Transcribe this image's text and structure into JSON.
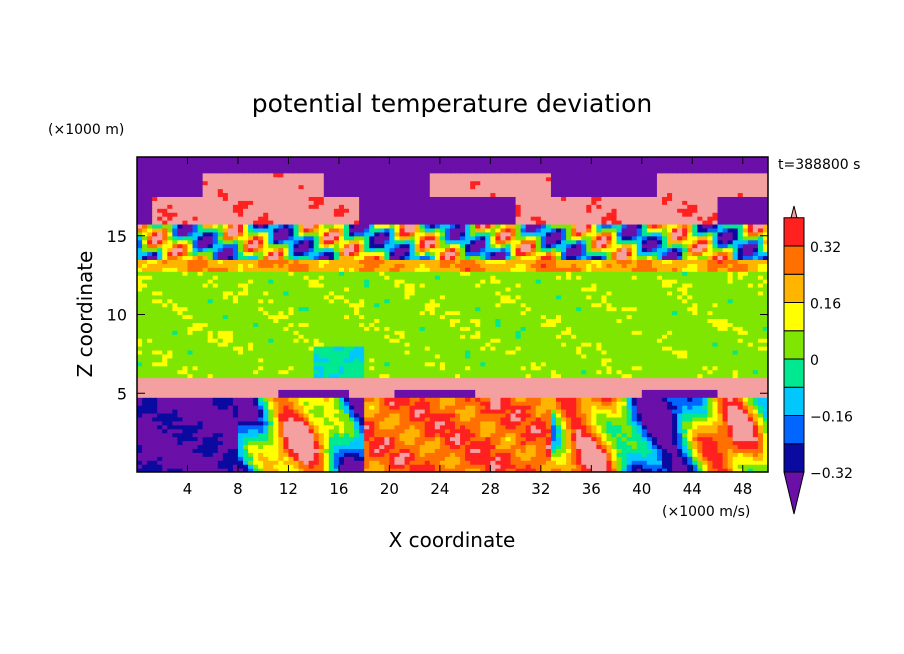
{
  "chart_data": {
    "type": "heatmap",
    "title": "potential temperature deviation",
    "time_label": "t=388800 s",
    "xlabel": "X coordinate",
    "ylabel": "Z coordinate",
    "x_unit": "(×1000 m/s)",
    "y_unit": "(×1000 m)",
    "xlim": [
      0,
      50
    ],
    "ylim": [
      0,
      20
    ],
    "x_ticks": [
      4,
      8,
      12,
      16,
      20,
      24,
      28,
      32,
      36,
      40,
      44,
      48
    ],
    "y_ticks": [
      5,
      10,
      15
    ],
    "colorbar": {
      "orientation": "vertical",
      "extend": "both",
      "levels": [
        -0.4,
        -0.32,
        -0.24,
        -0.16,
        -0.08,
        0,
        0.08,
        0.16,
        0.24,
        0.32,
        0.4
      ],
      "tick_labels": [
        "0.32",
        "0.16",
        "0",
        "−0.16",
        "−0.32"
      ],
      "tick_values": [
        0.32,
        0.16,
        0,
        -0.16,
        -0.32
      ],
      "colors": [
        "#6a0fa8",
        "#0a0aa0",
        "#0066ff",
        "#00c8ff",
        "#00e890",
        "#7ee600",
        "#ffff00",
        "#ffb400",
        "#ff7000",
        "#ff2020",
        "#f4a0a0"
      ]
    },
    "regions": [
      {
        "description": "upper stratified layer with alternating positive/negative anomalies",
        "z_range": [
          13.5,
          20
        ],
        "value_range": [
          -0.4,
          0.4
        ]
      },
      {
        "description": "mid-level slightly positive layer",
        "z_range": [
          6,
          13
        ],
        "value_range": [
          0,
          0.08
        ]
      },
      {
        "description": "inversion band with positive anomaly",
        "z_range": [
          5.3,
          5.9
        ],
        "value": 0.4
      },
      {
        "description": "boundary layer with strong convective anomalies",
        "z_range": [
          0,
          5
        ],
        "value_range": [
          -0.4,
          0.4
        ]
      }
    ]
  }
}
